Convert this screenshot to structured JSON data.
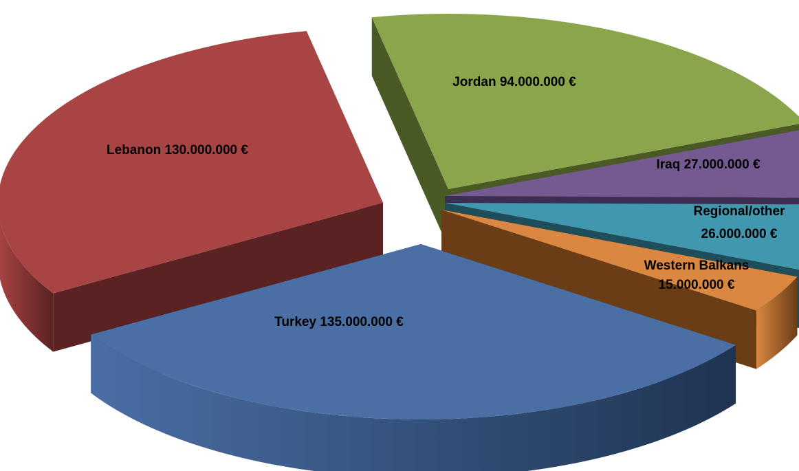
{
  "chart_data": {
    "type": "pie",
    "title": "",
    "currency": "€",
    "slices": [
      {
        "name": "Jordan",
        "value": 94000000,
        "label": "Jordan 94.000.000 €",
        "color": "#8aa54b",
        "side_color": "#4a5a25"
      },
      {
        "name": "Iraq",
        "value": 27000000,
        "label": "Iraq 27.000.000 €",
        "color": "#745a91",
        "side_color": "#3d2f52"
      },
      {
        "name": "Regional/other",
        "value": 26000000,
        "label_lines": [
          "Regional/other",
          "26.000.000 €"
        ],
        "color": "#4197ad",
        "side_color": "#1f4d5a"
      },
      {
        "name": "Western Balkans",
        "value": 15000000,
        "label_lines": [
          "Western Balkans",
          "15.000.000 €"
        ],
        "color": "#d98741",
        "side_color": "#6a3d16"
      },
      {
        "name": "Turkey",
        "value": 135000000,
        "label": "Turkey 135.000.000 €",
        "color": "#4a6fa5",
        "side_color": "#1f3452"
      },
      {
        "name": "Lebanon",
        "value": 130000000,
        "label": "Lebanon 130.000.000 €",
        "color": "#a84443",
        "side_color": "#5a2222"
      }
    ]
  }
}
